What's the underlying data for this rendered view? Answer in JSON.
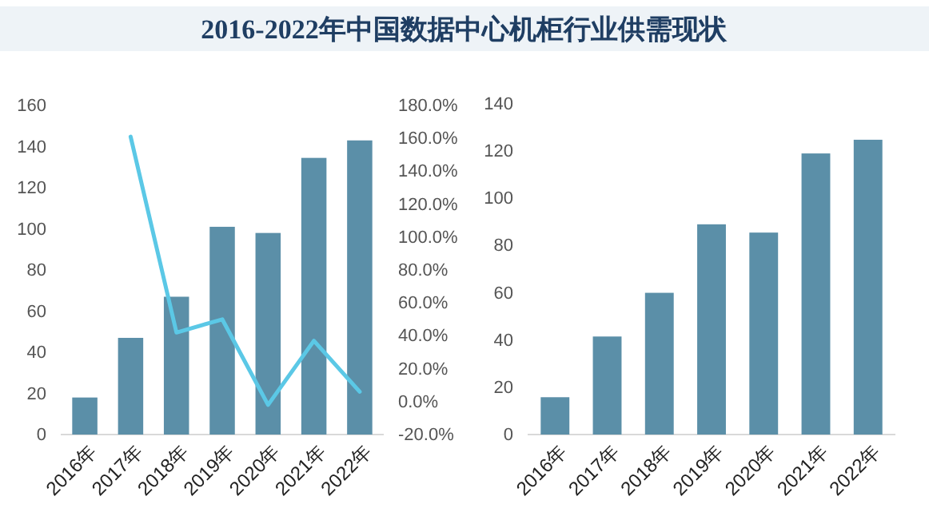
{
  "chart_data": [
    {
      "type": "bar",
      "title": "2016-2022年中国数据中心机柜行业供需现状",
      "categories": [
        "2016年",
        "2017年",
        "2018年",
        "2019年",
        "2020年",
        "2021年",
        "2022年"
      ],
      "series": [
        {
          "color": "#5b8fa8",
          "values": [
            18,
            47,
            67,
            101,
            98,
            134.5,
            143
          ]
        },
        {
          "type": "line",
          "axis": "y2",
          "color": "#5bc8e6",
          "values": [
            null,
            161,
            42,
            50,
            -2,
            37,
            6
          ]
        }
      ],
      "ylim": [
        0,
        160
      ],
      "yticks": [
        0,
        20,
        40,
        60,
        80,
        100,
        120,
        140,
        160
      ],
      "y2lim": [
        -20,
        180
      ],
      "y2ticks": [
        {
          "value": -20,
          "label": "-20.0%"
        },
        {
          "value": 0,
          "label": "0.0%"
        },
        {
          "value": 20,
          "label": "20.0%"
        },
        {
          "value": 40,
          "label": "40.0%"
        },
        {
          "value": 60,
          "label": "60.0%"
        },
        {
          "value": 80,
          "label": "80.0%"
        },
        {
          "value": 100,
          "label": "100.0%"
        },
        {
          "value": 120,
          "label": "120.0%"
        },
        {
          "value": 140,
          "label": "140.0%"
        },
        {
          "value": 160,
          "label": "160.0%"
        },
        {
          "value": 180,
          "label": "180.0%"
        }
      ],
      "grid": false,
      "marker": "none"
    },
    {
      "type": "bar",
      "categories": [
        "2016年",
        "2017年",
        "2018年",
        "2019年",
        "2020年",
        "2021年",
        "2022年"
      ],
      "series": [
        {
          "color": "#5b8fa8",
          "values": [
            15.8,
            41.5,
            60,
            89,
            85.5,
            119,
            124.8
          ]
        }
      ],
      "ylim": [
        0,
        140
      ],
      "yticks": [
        0,
        20,
        40,
        60,
        80,
        100,
        120,
        140
      ],
      "grid": false
    }
  ]
}
